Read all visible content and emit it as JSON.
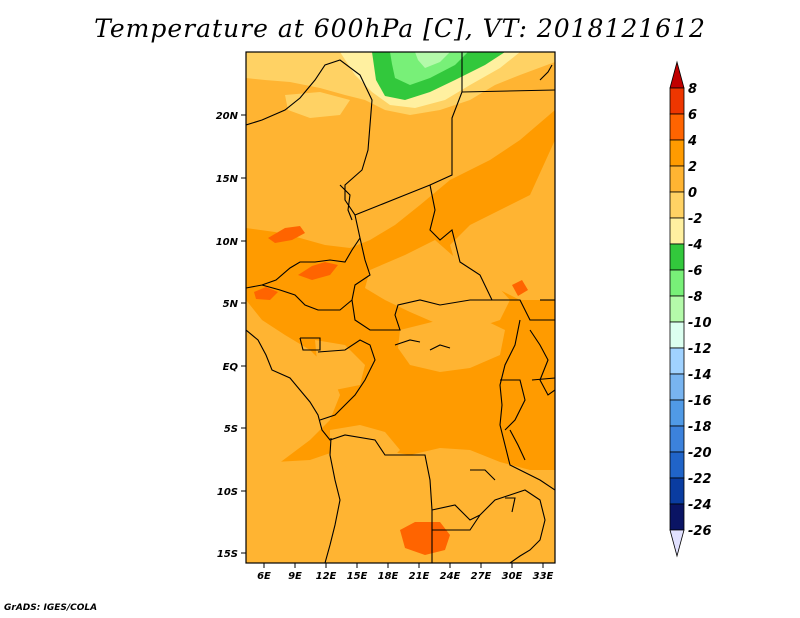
{
  "title": "Temperature at 600hPa [C], VT: 2018121612",
  "footer": "GrADS: IGES/COLA",
  "map": {
    "lon_ticks": [
      "6E",
      "9E",
      "12E",
      "15E",
      "18E",
      "21E",
      "24E",
      "27E",
      "30E",
      "33E"
    ],
    "lat_ticks": [
      "20N",
      "15N",
      "10N",
      "5N",
      "EQ",
      "5S",
      "10S",
      "15S"
    ],
    "lon_range": [
      3.5,
      33.5
    ],
    "lat_range": [
      -16,
      24.5
    ]
  },
  "colorbar": {
    "labels": [
      "8",
      "6",
      "4",
      "2",
      "0",
      "-2",
      "-4",
      "-6",
      "-8",
      "-10",
      "-12",
      "-14",
      "-16",
      "-18",
      "-20",
      "-22",
      "-24",
      "-26"
    ],
    "colors": [
      "#c00000",
      "#ee3600",
      "#ff6400",
      "#ff9b00",
      "#ffb432",
      "#ffd264",
      "#fff0a0",
      "#32c83c",
      "#78f078",
      "#b4faaa",
      "#dcfff0",
      "#a0d2ff",
      "#78b4f0",
      "#509ae6",
      "#3c82dc",
      "#2064c8",
      "#0a3ca0",
      "#0a1464"
    ],
    "top_arrow_color": "#c00000",
    "bottom_arrow_color": "#e1e1ff"
  }
}
